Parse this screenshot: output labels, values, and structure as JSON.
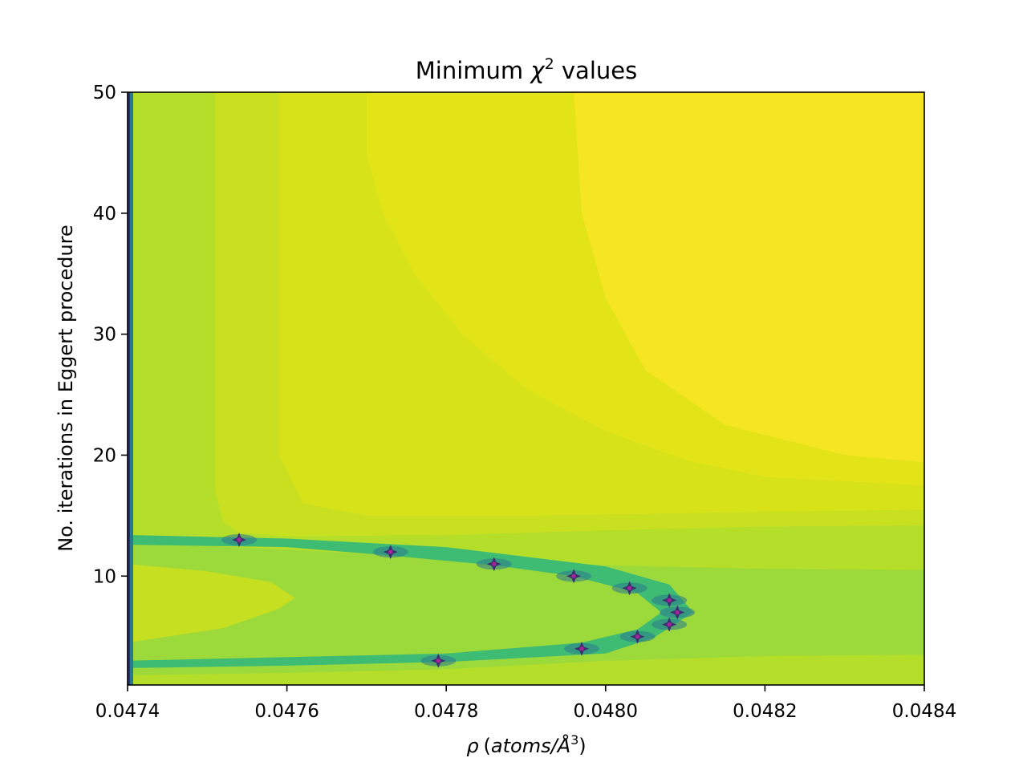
{
  "chart_data": {
    "type": "contour",
    "title_main": "Minimum ",
    "title_symbol": "χ",
    "title_sup": "2",
    "title_rest": " values",
    "xlabel_symbol": "ρ",
    "xlabel_units_prefix": "(",
    "xlabel_units": "atoms/Å",
    "xlabel_sup": "3",
    "xlabel_units_suffix": ")",
    "ylabel": "No. iterations in Eggert procedure",
    "xlim": [
      0.0474,
      0.0484
    ],
    "ylim": [
      1,
      50
    ],
    "xticks": [
      0.0474,
      0.0476,
      0.0478,
      0.048,
      0.0482,
      0.0484
    ],
    "xtick_labels": [
      "0.0474",
      "0.0476",
      "0.0478",
      "0.0480",
      "0.0482",
      "0.0484"
    ],
    "yticks": [
      10,
      20,
      30,
      40,
      50
    ],
    "ytick_labels": [
      "10",
      "20",
      "30",
      "40",
      "50"
    ],
    "colormap": "viridis",
    "background_color": "#d8e219",
    "grid": false,
    "minima": [
      {
        "x": 0.04754,
        "y": 13
      },
      {
        "x": 0.04773,
        "y": 12
      },
      {
        "x": 0.04786,
        "y": 11
      },
      {
        "x": 0.04796,
        "y": 10
      },
      {
        "x": 0.04803,
        "y": 9
      },
      {
        "x": 0.04808,
        "y": 8
      },
      {
        "x": 0.04809,
        "y": 7
      },
      {
        "x": 0.04808,
        "y": 6
      },
      {
        "x": 0.04804,
        "y": 5
      },
      {
        "x": 0.04797,
        "y": 4
      },
      {
        "x": 0.04779,
        "y": 3
      }
    ],
    "contour_bands": [
      {
        "color": "#b5de2b",
        "points": [
          [
            0.0474,
            50
          ],
          [
            0.04751,
            50
          ],
          [
            0.04751,
            17
          ],
          [
            0.04752,
            14.5
          ],
          [
            0.04754,
            13.6
          ],
          [
            0.0476,
            13.3
          ],
          [
            0.0478,
            13.4
          ],
          [
            0.048,
            13.8
          ],
          [
            0.0482,
            14.1
          ],
          [
            0.0484,
            14.2
          ],
          [
            0.0484,
            1
          ],
          [
            0.0474,
            1
          ]
        ]
      },
      {
        "color": "#c8e020",
        "points": [
          [
            0.04751,
            50
          ],
          [
            0.04759,
            50
          ],
          [
            0.04759,
            20
          ],
          [
            0.04762,
            16
          ],
          [
            0.0477,
            15
          ],
          [
            0.0479,
            15
          ],
          [
            0.0482,
            15.3
          ],
          [
            0.0484,
            15.5
          ],
          [
            0.0484,
            14.2
          ],
          [
            0.0482,
            14.1
          ],
          [
            0.048,
            13.8
          ],
          [
            0.0478,
            13.4
          ],
          [
            0.0476,
            13.3
          ],
          [
            0.04754,
            13.6
          ],
          [
            0.04752,
            14.5
          ],
          [
            0.04751,
            17
          ]
        ]
      },
      {
        "color": "#e2e418",
        "points": [
          [
            0.0477,
            50
          ],
          [
            0.04796,
            50
          ],
          [
            0.04797,
            40
          ],
          [
            0.048,
            33
          ],
          [
            0.04805,
            27
          ],
          [
            0.04815,
            22.5
          ],
          [
            0.0483,
            20
          ],
          [
            0.0484,
            19.4
          ],
          [
            0.0484,
            17.5
          ],
          [
            0.0482,
            18.2
          ],
          [
            0.0481,
            19.6
          ],
          [
            0.048,
            22
          ],
          [
            0.0479,
            25.5
          ],
          [
            0.04782,
            30
          ],
          [
            0.04776,
            35
          ],
          [
            0.04772,
            40
          ],
          [
            0.0477,
            45
          ]
        ]
      },
      {
        "color": "#f5e621",
        "points": [
          [
            0.04796,
            50
          ],
          [
            0.0484,
            50
          ],
          [
            0.0484,
            19.4
          ],
          [
            0.0483,
            20
          ],
          [
            0.04815,
            22.5
          ],
          [
            0.04805,
            27
          ],
          [
            0.048,
            33
          ],
          [
            0.04797,
            40
          ]
        ]
      },
      {
        "color": "#9cd93b",
        "points": [
          [
            0.0474,
            12.8
          ],
          [
            0.0476,
            12.2
          ],
          [
            0.0478,
            11.5
          ],
          [
            0.048,
            10.9
          ],
          [
            0.0482,
            10.6
          ],
          [
            0.0484,
            10.5
          ],
          [
            0.0484,
            3.5
          ],
          [
            0.0482,
            3.4
          ],
          [
            0.048,
            3.0
          ],
          [
            0.0478,
            2.3
          ],
          [
            0.0476,
            2.0
          ],
          [
            0.0474,
            1.8
          ]
        ]
      },
      {
        "color": "#c6e021",
        "points": [
          [
            0.0474,
            11
          ],
          [
            0.0475,
            10.4
          ],
          [
            0.04758,
            9.5
          ],
          [
            0.04761,
            8.2
          ],
          [
            0.04759,
            7.3
          ],
          [
            0.04752,
            5.7
          ],
          [
            0.0474,
            4.5
          ]
        ]
      },
      {
        "color": "#3fbc73",
        "points": [
          [
            0.0474,
            13.4
          ],
          [
            0.0476,
            13.1
          ],
          [
            0.0478,
            12.4
          ],
          [
            0.048,
            10.8
          ],
          [
            0.04808,
            9.3
          ],
          [
            0.04811,
            7.0
          ],
          [
            0.04806,
            4.9
          ],
          [
            0.048,
            3.6
          ],
          [
            0.0478,
            2.9
          ],
          [
            0.0476,
            2.6
          ],
          [
            0.0474,
            2.4
          ],
          [
            0.0474,
            3.0
          ],
          [
            0.0476,
            3.3
          ],
          [
            0.0478,
            3.6
          ],
          [
            0.04797,
            4.5
          ],
          [
            0.04804,
            5.6
          ],
          [
            0.04807,
            7.0
          ],
          [
            0.04804,
            8.6
          ],
          [
            0.04796,
            10.0
          ],
          [
            0.04786,
            10.9
          ],
          [
            0.04773,
            11.7
          ],
          [
            0.0476,
            12.4
          ],
          [
            0.0474,
            12.6
          ]
        ]
      }
    ]
  }
}
